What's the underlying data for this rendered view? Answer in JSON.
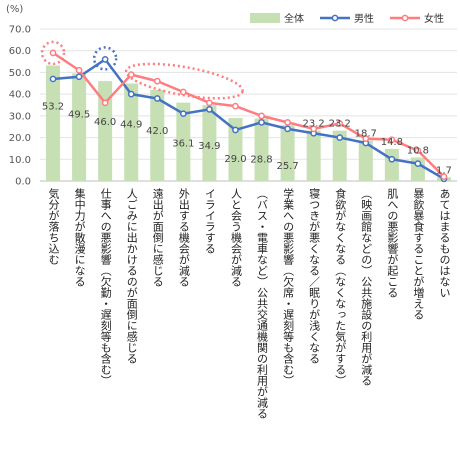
{
  "chart_data": {
    "type": "bar+line",
    "y_unit": "(%)",
    "ylim": [
      0,
      70
    ],
    "yticks": [
      "0.0",
      "10.0",
      "20.0",
      "30.0",
      "40.0",
      "50.0",
      "60.0",
      "70.0"
    ],
    "grid": true,
    "legend_position": "top-right",
    "categories": [
      "気分が落ち込む",
      "集中力が散漫になる",
      "仕事への悪影響（欠勤・遅刻等も含む）",
      "人ごみに出かけるのが面倒に感じる",
      "遠出が面倒に感じる",
      "外出する機会が減る",
      "イライラする",
      "人と会う機会が減る",
      "（バス・電車など）公共交通機関の利用が減る",
      "学業への悪影響（欠席・遅刻等も含む）",
      "寝つきが悪くなる／眠りが浅くなる",
      "食欲がなくなる（なくなった気がする）",
      "（映画館などの）公共施設の利用が減る",
      "肌への悪影響が起こる",
      "暴飲暴食することが増える",
      "あてはまるものはない"
    ],
    "series": [
      {
        "name": "全体",
        "kind": "bar",
        "color": "#c6e0b4",
        "values": [
          53.2,
          49.5,
          46.0,
          44.9,
          42.0,
          36.1,
          34.9,
          29.0,
          28.8,
          25.7,
          23.2,
          23.2,
          18.7,
          14.8,
          10.8,
          1.7
        ],
        "labels": [
          "53.2",
          "49.5",
          "46.0",
          "44.9",
          "42.0",
          "36.1",
          "34.9",
          "29.0",
          "28.8",
          "25.7",
          "23.2",
          "23.2",
          "18.7",
          "14.8",
          "10.8",
          "1.7"
        ]
      },
      {
        "name": "男性",
        "kind": "line",
        "color": "#4472c4",
        "values": [
          47.0,
          48.0,
          56.0,
          40.0,
          38.0,
          31.0,
          33.0,
          23.5,
          27.0,
          24.0,
          22.0,
          20.0,
          17.5,
          10.0,
          8.0,
          1.0
        ]
      },
      {
        "name": "女性",
        "kind": "line",
        "color": "#ff7c80",
        "values": [
          59.0,
          51.0,
          36.0,
          49.0,
          46.0,
          41.0,
          36.0,
          34.5,
          30.0,
          27.0,
          24.0,
          26.5,
          19.5,
          19.0,
          14.0,
          2.0
        ]
      }
    ],
    "highlight_colors": {
      "female_circle": "#ff7c80",
      "male_circle": "#4472c4"
    }
  }
}
